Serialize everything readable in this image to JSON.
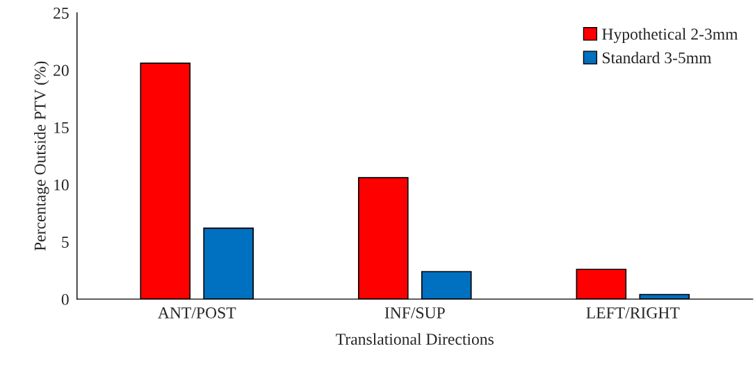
{
  "chart_data": {
    "type": "bar",
    "xlabel": "Translational Directions",
    "ylabel": "Percentage Outside PTV (%)",
    "categories": [
      "ANT/POST",
      "INF/SUP",
      "LEFT/RIGHT"
    ],
    "series": [
      {
        "name": "Hypothetical 2-3mm",
        "color": "#ff0000",
        "values": [
          20.6,
          10.6,
          2.6
        ]
      },
      {
        "name": "Standard 3-5mm",
        "color": "#0070c0",
        "values": [
          6.2,
          2.4,
          0.4
        ]
      }
    ],
    "ylim": [
      0,
      25
    ],
    "yticks": [
      0,
      5,
      10,
      15,
      20,
      25
    ],
    "grid": false,
    "legend": "top right"
  }
}
